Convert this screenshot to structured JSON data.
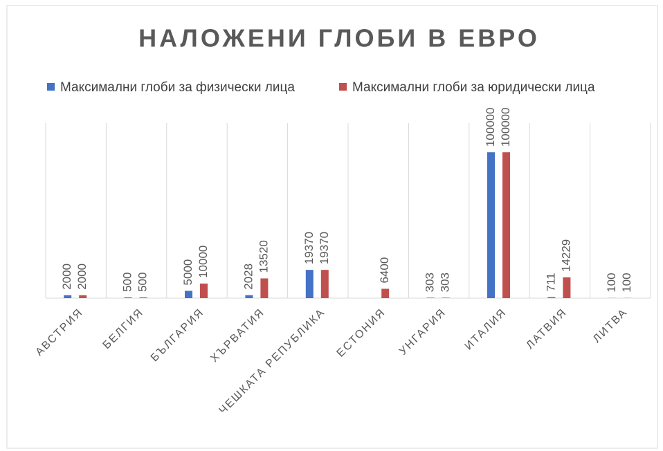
{
  "chart_data": {
    "type": "bar",
    "title": "НАЛОЖЕНИ ГЛОБИ В ЕВРО",
    "categories": [
      "АВСТРИЯ",
      "БЕЛГИЯ",
      "БЪЛГАРИЯ",
      "ХЪРВАТИЯ",
      "ЧЕШКАТА РЕПУБЛИКА",
      "ЕСТОНИЯ",
      "УНГАРИЯ",
      "ИТАЛИЯ",
      "ЛАТВИЯ",
      "ЛИТВА"
    ],
    "series": [
      {
        "name": "Максимални глоби за физически лица",
        "color": "#4472c4",
        "values": [
          2000,
          500,
          5000,
          2028,
          19370,
          null,
          303,
          100000,
          711,
          100
        ]
      },
      {
        "name": "Максимални глоби за юридически лица",
        "color": "#c0504d",
        "values": [
          2000,
          500,
          10000,
          13520,
          19370,
          6400,
          303,
          100000,
          14229,
          100
        ]
      }
    ],
    "ylim": [
      0,
      120000
    ],
    "legend": "top"
  }
}
